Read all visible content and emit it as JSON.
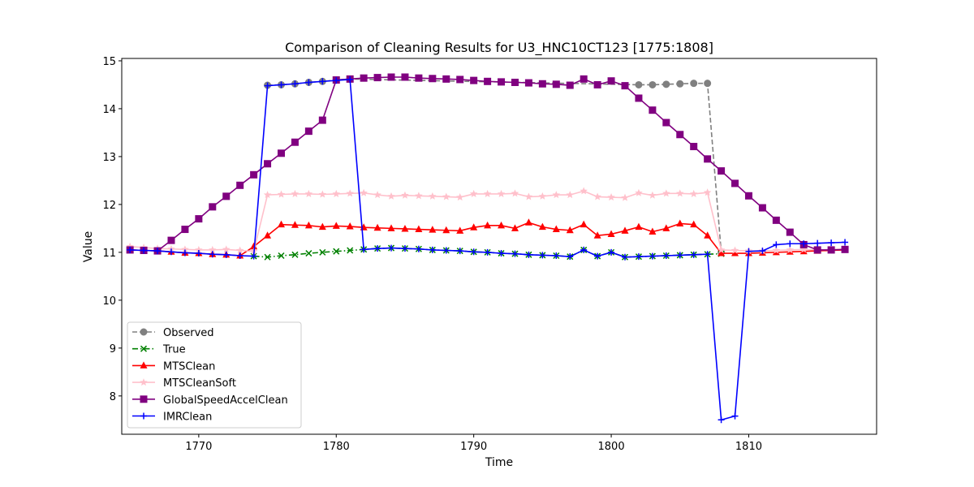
{
  "chart_data": {
    "type": "line",
    "title": "Comparison of Cleaning Results for U3_HNC10CT123 [1775:1808]",
    "xlabel": "Time",
    "ylabel": "Value",
    "xlim": [
      1764.4,
      1819.3
    ],
    "ylim": [
      7.2,
      15.05
    ],
    "xticks": [
      1770,
      1780,
      1790,
      1800,
      1810
    ],
    "yticks": [
      8,
      9,
      10,
      11,
      12,
      13,
      14,
      15
    ],
    "grid": false,
    "legend_position": "lower-left",
    "series": [
      {
        "name": "Observed",
        "color": "#808080",
        "linestyle": "dashed",
        "marker": "circle",
        "x": [
          1775,
          1776,
          1777,
          1778,
          1779,
          1780,
          1781,
          1802,
          1803,
          1804,
          1805,
          1806,
          1807,
          1808
        ],
        "values": [
          14.49,
          14.5,
          14.52,
          14.55,
          14.57,
          14.6,
          14.62,
          14.5,
          14.5,
          14.51,
          14.52,
          14.53,
          14.53,
          11.0
        ]
      },
      {
        "name": "True",
        "color": "#008000",
        "linestyle": "dashdot",
        "marker": "x",
        "x": [
          1774,
          1775,
          1776,
          1777,
          1778,
          1779,
          1780,
          1781,
          1782,
          1783,
          1784,
          1785,
          1786,
          1787,
          1788,
          1789,
          1790,
          1791,
          1792,
          1793,
          1794,
          1795,
          1796,
          1797,
          1798,
          1799,
          1800,
          1801,
          1802,
          1803,
          1804,
          1805,
          1806,
          1807,
          1808
        ],
        "values": [
          10.92,
          10.9,
          10.93,
          10.95,
          10.98,
          11.0,
          11.02,
          11.04,
          11.06,
          11.08,
          11.09,
          11.08,
          11.07,
          11.05,
          11.04,
          11.03,
          11.01,
          11.0,
          10.98,
          10.97,
          10.95,
          10.94,
          10.93,
          10.91,
          11.05,
          10.92,
          11.0,
          10.9,
          10.91,
          10.92,
          10.93,
          10.94,
          10.95,
          10.96,
          10.97
        ]
      },
      {
        "name": "MTSClean",
        "color": "#ff0000",
        "linestyle": "solid",
        "marker": "triangle",
        "x": [
          1765,
          1766,
          1767,
          1768,
          1769,
          1770,
          1771,
          1772,
          1773,
          1774,
          1775,
          1776,
          1777,
          1778,
          1779,
          1780,
          1781,
          1782,
          1783,
          1784,
          1785,
          1786,
          1787,
          1788,
          1789,
          1790,
          1791,
          1792,
          1793,
          1794,
          1795,
          1796,
          1797,
          1798,
          1799,
          1800,
          1801,
          1802,
          1803,
          1804,
          1805,
          1806,
          1807,
          1808,
          1809,
          1810,
          1811,
          1812,
          1813,
          1814,
          1815,
          1816,
          1817
        ],
        "values": [
          11.05,
          11.04,
          11.03,
          11.01,
          10.99,
          10.98,
          10.96,
          10.95,
          10.93,
          11.12,
          11.35,
          11.58,
          11.57,
          11.56,
          11.53,
          11.55,
          11.54,
          11.52,
          11.51,
          11.5,
          11.49,
          11.48,
          11.47,
          11.46,
          11.45,
          11.52,
          11.56,
          11.56,
          11.5,
          11.62,
          11.53,
          11.48,
          11.46,
          11.58,
          11.35,
          11.38,
          11.45,
          11.53,
          11.43,
          11.5,
          11.6,
          11.58,
          11.35,
          10.98,
          10.98,
          10.98,
          10.99,
          11.0,
          11.01,
          11.02,
          11.03,
          11.04,
          11.05
        ]
      },
      {
        "name": "MTSCleanSoft",
        "color": "#ffc0cb",
        "linestyle": "solid",
        "marker": "star",
        "x": [
          1765,
          1766,
          1767,
          1768,
          1769,
          1770,
          1771,
          1772,
          1773,
          1774,
          1775,
          1776,
          1777,
          1778,
          1779,
          1780,
          1781,
          1782,
          1783,
          1784,
          1785,
          1786,
          1787,
          1788,
          1789,
          1790,
          1791,
          1792,
          1793,
          1794,
          1795,
          1796,
          1797,
          1798,
          1799,
          1800,
          1801,
          1802,
          1803,
          1804,
          1805,
          1806,
          1807,
          1808,
          1809,
          1810,
          1811,
          1812,
          1813,
          1814,
          1815,
          1816,
          1817
        ],
        "values": [
          11.12,
          11.1,
          11.08,
          11.07,
          11.06,
          11.05,
          11.05,
          11.06,
          11.04,
          11.02,
          12.2,
          12.21,
          12.22,
          12.22,
          12.21,
          12.22,
          12.23,
          12.24,
          12.2,
          12.17,
          12.19,
          12.18,
          12.17,
          12.16,
          12.15,
          12.22,
          12.22,
          12.22,
          12.23,
          12.16,
          12.17,
          12.2,
          12.2,
          12.28,
          12.16,
          12.15,
          12.14,
          12.24,
          12.19,
          12.23,
          12.23,
          12.22,
          12.25,
          11.05,
          11.04,
          11.03,
          11.03,
          11.04,
          11.05,
          11.06,
          11.05,
          11.06,
          11.07
        ]
      },
      {
        "name": "GlobalSpeedAccelClean",
        "color": "#800080",
        "linestyle": "solid",
        "marker": "square",
        "x": [
          1765,
          1766,
          1767,
          1768,
          1769,
          1770,
          1771,
          1772,
          1773,
          1774,
          1775,
          1776,
          1777,
          1778,
          1779,
          1780,
          1781,
          1782,
          1783,
          1784,
          1785,
          1786,
          1787,
          1788,
          1789,
          1790,
          1791,
          1792,
          1793,
          1794,
          1795,
          1796,
          1797,
          1798,
          1799,
          1800,
          1801,
          1802,
          1803,
          1804,
          1805,
          1806,
          1807,
          1808,
          1809,
          1810,
          1811,
          1812,
          1813,
          1814,
          1815,
          1816,
          1817
        ],
        "values": [
          11.05,
          11.04,
          11.03,
          11.25,
          11.48,
          11.7,
          11.95,
          12.17,
          12.4,
          12.62,
          12.85,
          13.07,
          13.3,
          13.53,
          13.76,
          14.6,
          14.62,
          14.64,
          14.65,
          14.66,
          14.66,
          14.64,
          14.63,
          14.62,
          14.61,
          14.59,
          14.57,
          14.56,
          14.55,
          14.54,
          14.52,
          14.51,
          14.49,
          14.62,
          14.5,
          14.58,
          14.48,
          14.22,
          13.97,
          13.71,
          13.46,
          13.21,
          12.95,
          12.7,
          12.44,
          12.18,
          11.93,
          11.67,
          11.42,
          11.16,
          11.05,
          11.05,
          11.06
        ]
      },
      {
        "name": "IMRClean",
        "color": "#0000ff",
        "linestyle": "solid",
        "marker": "plus",
        "x": [
          1765,
          1766,
          1767,
          1768,
          1769,
          1770,
          1771,
          1772,
          1773,
          1774,
          1775,
          1776,
          1777,
          1778,
          1779,
          1780,
          1781,
          1782,
          1783,
          1784,
          1785,
          1786,
          1787,
          1788,
          1789,
          1790,
          1791,
          1792,
          1793,
          1794,
          1795,
          1796,
          1797,
          1798,
          1799,
          1800,
          1801,
          1802,
          1803,
          1804,
          1805,
          1806,
          1807,
          1808,
          1809,
          1810,
          1811,
          1812,
          1813,
          1814,
          1815,
          1816,
          1817
        ],
        "values": [
          11.05,
          11.04,
          11.03,
          11.01,
          10.99,
          10.98,
          10.96,
          10.95,
          10.93,
          10.92,
          14.48,
          14.5,
          14.52,
          14.55,
          14.57,
          14.59,
          14.61,
          11.06,
          11.08,
          11.09,
          11.08,
          11.07,
          11.05,
          11.04,
          11.03,
          11.01,
          11.0,
          10.98,
          10.97,
          10.95,
          10.94,
          10.93,
          10.91,
          11.05,
          10.92,
          11.0,
          10.9,
          10.91,
          10.92,
          10.93,
          10.94,
          10.95,
          10.96,
          7.5,
          7.58,
          11.02,
          11.03,
          11.16,
          11.18,
          11.18,
          11.19,
          11.2,
          11.21
        ]
      }
    ]
  }
}
